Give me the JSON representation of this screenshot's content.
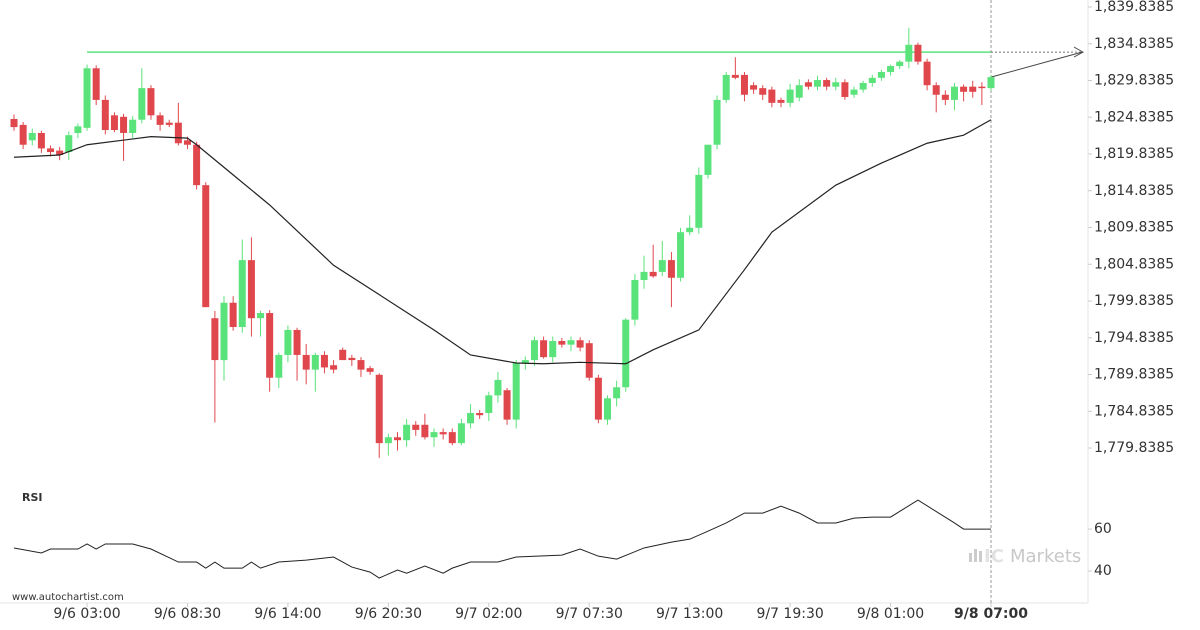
{
  "chart_data": {
    "type": "candlestick",
    "up_color": "#5ae27b",
    "down_color": "#e0474c",
    "categories": [
      null,
      null,
      null,
      null,
      null,
      null,
      null,
      null,
      "9/6 03:00",
      null,
      null,
      null,
      null,
      null,
      null,
      null,
      null,
      null,
      null,
      "9/6 08:30",
      null,
      null,
      null,
      null,
      null,
      null,
      null,
      null,
      null,
      null,
      "9/6 14:00",
      null,
      null,
      null,
      null,
      null,
      null,
      null,
      null,
      null,
      null,
      "9/6 20:30",
      null,
      null,
      null,
      null,
      null,
      null,
      null,
      null,
      null,
      null,
      "9/7 02:00",
      null,
      null,
      null,
      null,
      null,
      null,
      null,
      null,
      null,
      null,
      "9/7 07:30",
      null,
      null,
      null,
      null,
      null,
      null,
      null,
      null,
      null,
      null,
      "9/7 13:00",
      null,
      null,
      null,
      null,
      null,
      null,
      null,
      null,
      null,
      null,
      "9/7 19:30",
      null,
      null,
      null,
      null,
      null,
      null,
      null,
      null,
      null,
      null,
      "9/8 01:00",
      null,
      null,
      null,
      null,
      null,
      null,
      null,
      null,
      null,
      null,
      "9/8 07:00"
    ],
    "open": [
      1824.6,
      1823.8,
      1821.7,
      1822.7,
      1820.6,
      1820.3,
      1820.1,
      1822.7,
      1823.4,
      1831.5,
      1827.2,
      1825.1,
      1824.9,
      1822.7,
      1824.5,
      1828.8,
      1825.1,
      1824.1,
      1824.1,
      1821.7,
      1821.1,
      1815.6,
      1797.5,
      1791.8,
      1799.6,
      1796.3,
      1805.4,
      1797.5,
      1798.2,
      1789.4,
      1792.5,
      1795.9,
      1792.5,
      1790.5,
      1792.5,
      1791.1,
      1793.2,
      1792.1,
      1791.8,
      1790.7,
      1789.8,
      1780.5,
      1781.3,
      1780.9,
      1783.0,
      1783.0,
      1781.3,
      1782.0,
      1782.0,
      1780.5,
      1783.2,
      1784.6,
      1784.6,
      1787.0,
      1787.7,
      1783.7,
      1791.4,
      1791.8,
      1794.5,
      1792.2,
      1794.4,
      1793.9,
      1794.5,
      1794.1,
      1789.4,
      1783.7,
      1786.6,
      1788.1,
      1797.3,
      1802.7,
      1803.8,
      1803.8,
      1805.4,
      1803.0,
      1809.2,
      1809.8,
      1817.0,
      1821.1,
      1827.2,
      1830.6,
      1830.6,
      1829.2,
      1828.8,
      1828.6,
      1827.2,
      1826.8,
      1827.5,
      1829.6,
      1829.0,
      1829.9,
      1829.0,
      1829.6,
      1827.9,
      1828.6,
      1829.5,
      1830.2,
      1831.0,
      1831.8,
      1832.4,
      1834.7,
      1832.4,
      1829.2,
      1827.9,
      1827.2,
      1829.0,
      1829.0,
      1829.0,
      1828.8
    ],
    "high": [
      1825.2,
      1824.2,
      1823.3,
      1823.0,
      1821.0,
      1820.8,
      1822.9,
      1824.0,
      1832.0,
      1831.9,
      1827.8,
      1825.5,
      1825.3,
      1825.0,
      1831.5,
      1829.2,
      1825.5,
      1824.5,
      1826.8,
      1822.2,
      1821.5,
      1816.0,
      1798.5,
      1800.5,
      1800.5,
      1808.2,
      1808.5,
      1798.5,
      1798.6,
      1792.8,
      1796.5,
      1796.2,
      1794.0,
      1792.8,
      1793.0,
      1791.8,
      1793.5,
      1792.5,
      1792.2,
      1791.0,
      1790.0,
      1781.8,
      1782.0,
      1783.8,
      1783.5,
      1784.5,
      1782.5,
      1782.5,
      1782.5,
      1783.8,
      1785.8,
      1785.0,
      1787.5,
      1790.2,
      1788.0,
      1791.8,
      1792.3,
      1795.0,
      1795.0,
      1795.0,
      1794.8,
      1795.0,
      1794.9,
      1794.5,
      1789.8,
      1787.0,
      1789.0,
      1797.5,
      1803.5,
      1806.0,
      1807.5,
      1808.0,
      1806.5,
      1809.8,
      1811.5,
      1818.0,
      1821.0,
      1827.8,
      1831.0,
      1833.0,
      1831.0,
      1829.6,
      1829.2,
      1829.0,
      1827.5,
      1829.4,
      1830.0,
      1830.0,
      1830.5,
      1830.2,
      1830.2,
      1830.0,
      1829.0,
      1829.8,
      1830.6,
      1831.3,
      1832.0,
      1832.6,
      1837.0,
      1835.0,
      1832.8,
      1829.6,
      1828.5,
      1829.5,
      1829.3,
      1829.8,
      1829.6,
      1830.6
    ],
    "low": [
      1823.0,
      1820.5,
      1821.0,
      1820.0,
      1819.5,
      1819.0,
      1819.0,
      1822.0,
      1823.0,
      1826.5,
      1822.5,
      1822.8,
      1818.9,
      1822.0,
      1824.0,
      1824.5,
      1823.0,
      1823.5,
      1821.0,
      1820.5,
      1815.0,
      1799.0,
      1783.3,
      1789.0,
      1795.8,
      1795.5,
      1795.0,
      1795.0,
      1787.5,
      1788.0,
      1791.5,
      1789.0,
      1788.5,
      1787.5,
      1790.0,
      1790.0,
      1791.8,
      1791.0,
      1789.5,
      1789.8,
      1778.5,
      1778.8,
      1779.5,
      1780.0,
      1781.5,
      1781.0,
      1780.0,
      1781.0,
      1780.2,
      1780.2,
      1782.5,
      1783.8,
      1783.5,
      1786.0,
      1783.0,
      1782.5,
      1790.5,
      1791.0,
      1792.0,
      1791.5,
      1793.5,
      1793.0,
      1793.0,
      1789.0,
      1783.2,
      1783.0,
      1785.5,
      1787.5,
      1796.5,
      1801.5,
      1803.0,
      1803.2,
      1799.0,
      1802.5,
      1808.8,
      1809.0,
      1816.5,
      1820.5,
      1826.8,
      1830.0,
      1827.0,
      1828.0,
      1827.2,
      1826.2,
      1826.2,
      1826.2,
      1827.0,
      1828.6,
      1828.5,
      1828.5,
      1828.5,
      1827.2,
      1827.5,
      1828.2,
      1829.0,
      1829.8,
      1830.5,
      1831.4,
      1831.5,
      1832.0,
      1828.5,
      1825.5,
      1826.5,
      1825.8,
      1827.0,
      1827.5,
      1826.5,
      1828.5
    ],
    "close": [
      1823.5,
      1821.1,
      1822.7,
      1820.6,
      1820.1,
      1819.7,
      1822.4,
      1823.6,
      1831.5,
      1827.2,
      1823.1,
      1823.1,
      1822.7,
      1824.5,
      1828.8,
      1825.1,
      1823.8,
      1823.8,
      1821.3,
      1821.1,
      1815.6,
      1799.0,
      1791.8,
      1799.6,
      1796.3,
      1805.4,
      1797.5,
      1798.2,
      1789.4,
      1792.5,
      1795.9,
      1792.5,
      1790.5,
      1792.5,
      1790.8,
      1790.5,
      1791.8,
      1791.8,
      1790.5,
      1790.2,
      1780.5,
      1781.3,
      1780.9,
      1783.0,
      1782.3,
      1781.3,
      1782.0,
      1781.7,
      1780.5,
      1783.2,
      1784.6,
      1784.3,
      1787.0,
      1789.1,
      1783.7,
      1791.4,
      1791.8,
      1794.5,
      1792.2,
      1794.4,
      1793.9,
      1794.5,
      1793.5,
      1789.4,
      1783.7,
      1786.6,
      1788.1,
      1797.3,
      1802.7,
      1803.8,
      1803.2,
      1805.4,
      1803.0,
      1809.2,
      1809.8,
      1817.0,
      1821.1,
      1827.2,
      1830.6,
      1830.2,
      1827.9,
      1828.6,
      1827.9,
      1826.8,
      1826.8,
      1828.6,
      1829.2,
      1829.0,
      1829.9,
      1829.0,
      1829.6,
      1827.6,
      1828.6,
      1829.5,
      1830.2,
      1831.0,
      1831.8,
      1832.4,
      1834.7,
      1832.4,
      1829.2,
      1827.9,
      1827.2,
      1829.0,
      1828.3,
      1828.3,
      1828.8,
      1830.3
    ],
    "ylim": [
      1779.8385,
      1839.8385
    ],
    "yticks": [
      {
        "value": 1779.8385,
        "label": "1,779.8385"
      },
      {
        "value": 1784.8385,
        "label": "1,784.8385"
      },
      {
        "value": 1789.8385,
        "label": "1,789.8385"
      },
      {
        "value": 1794.8385,
        "label": "1,794.8385"
      },
      {
        "value": 1799.8385,
        "label": "1,799.8385"
      },
      {
        "value": 1804.8385,
        "label": "1,804.8385"
      },
      {
        "value": 1809.8385,
        "label": "1,809.8385"
      },
      {
        "value": 1814.8385,
        "label": "1,814.8385"
      },
      {
        "value": 1819.8385,
        "label": "1,819.8385"
      },
      {
        "value": 1824.8385,
        "label": "1,824.8385"
      },
      {
        "value": 1829.8385,
        "label": "1,829.8385"
      },
      {
        "value": 1834.8385,
        "label": "1,834.8385"
      },
      {
        "value": 1839.8385,
        "label": "1,839.8385"
      }
    ],
    "moving_average": {
      "color": "#222222",
      "x": [
        0,
        5,
        8,
        15,
        19,
        20,
        24,
        28,
        35,
        40,
        46,
        50,
        55,
        58,
        62,
        67,
        70,
        75,
        80,
        83,
        90,
        95,
        100,
        104,
        107
      ],
      "values": [
        1819.4,
        1819.7,
        1821.1,
        1822.2,
        1822.0,
        1821.1,
        1817.0,
        1812.9,
        1804.7,
        1800.7,
        1795.9,
        1792.5,
        1791.4,
        1791.3,
        1791.5,
        1791.3,
        1793.2,
        1795.9,
        1804.1,
        1809.2,
        1815.6,
        1818.6,
        1821.3,
        1822.4,
        1824.5
      ]
    },
    "resistance": {
      "value": 1833.7,
      "from": 8,
      "color": "#5be37d"
    },
    "rsi": {
      "label": "RSI",
      "color": "#222222",
      "ylim": [
        24.8,
        78.6
      ],
      "yticks": [
        40,
        60
      ],
      "x": [
        0,
        3,
        4,
        7,
        8,
        9,
        10,
        13,
        15,
        18,
        20,
        21,
        22,
        23,
        25,
        26,
        27,
        29,
        32,
        35,
        36,
        37,
        39,
        40,
        42,
        43,
        45,
        47,
        48,
        50,
        53,
        55,
        60,
        62,
        64,
        66,
        69,
        72,
        74,
        76,
        78,
        80,
        82,
        84,
        86,
        88,
        90,
        92,
        94,
        96,
        99,
        103,
        104,
        107
      ],
      "values": [
        51,
        48.6,
        50.5,
        50.5,
        52.9,
        50.5,
        52.9,
        52.9,
        50.5,
        44.3,
        44.3,
        41.4,
        44.3,
        41.4,
        41.4,
        44.3,
        41.4,
        44.3,
        45.2,
        46.7,
        44.3,
        41.9,
        39.5,
        36.7,
        40.5,
        39,
        42.4,
        39,
        41.4,
        44.3,
        44.3,
        46.7,
        47.6,
        50.5,
        47.1,
        45.7,
        51,
        53.8,
        55.2,
        59,
        62.9,
        67.6,
        67.6,
        70.9,
        67.6,
        62.9,
        62.9,
        65.2,
        65.7,
        65.7,
        73.8,
        62.9,
        60,
        60
      ]
    },
    "source": "www.autochartist.com",
    "logo": [
      "IC",
      "Markets"
    ]
  }
}
